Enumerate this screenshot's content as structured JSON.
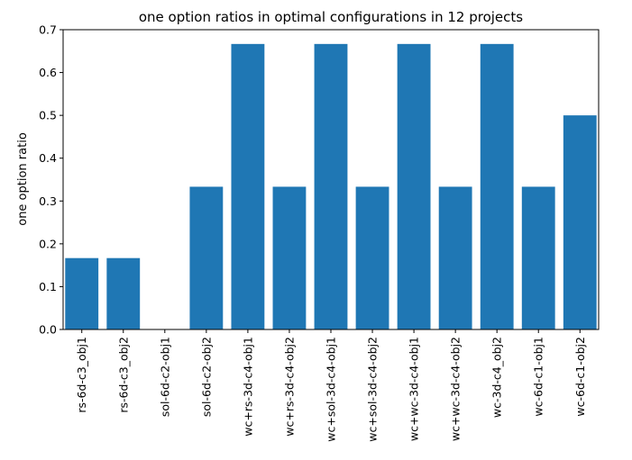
{
  "chart_data": {
    "type": "bar",
    "title": "one option ratios in optimal configurations in 12 projects",
    "xlabel": "",
    "ylabel": "one option ratio",
    "ylim": [
      0,
      0.7
    ],
    "yticks": [
      "0.0",
      "0.1",
      "0.2",
      "0.3",
      "0.4",
      "0.5",
      "0.6",
      "0.7"
    ],
    "grid": false,
    "categories": [
      "rs-6d-c3_obj1",
      "rs-6d-c3_obj2",
      "sol-6d-c2-obj1",
      "sol-6d-c2-obj2",
      "wc+rs-3d-c4-obj1",
      "wc+rs-3d-c4-obj2",
      "wc+sol-3d-c4-obj1",
      "wc+sol-3d-c4-obj2",
      "wc+wc-3d-c4-obj1",
      "wc+wc-3d-c4-obj2",
      "wc-3d-c4_obj2",
      "wc-6d-c1-obj1",
      "wc-6d-c1-obj2"
    ],
    "values": [
      0.1667,
      0.1667,
      0.0,
      0.3333,
      0.6667,
      0.3333,
      0.6667,
      0.3333,
      0.6667,
      0.3333,
      0.6667,
      0.3333,
      0.5
    ],
    "bar_color": "#1f77b4"
  }
}
